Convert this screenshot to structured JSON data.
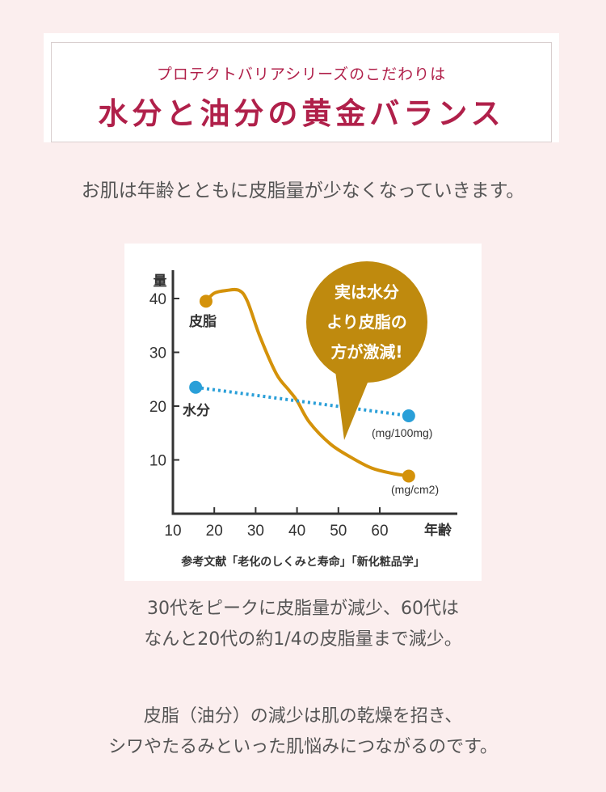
{
  "header": {
    "subtitle": "プロテクトバリアシリーズのこだわりは",
    "title": "水分と油分の黄金バランス"
  },
  "intro": "お肌は年齢とともに皮脂量が少なくなっていきます。",
  "chart_data": {
    "type": "line",
    "ylabel": "量",
    "xlabel": "年齢",
    "x_ticks": [
      "10",
      "20",
      "30",
      "40",
      "50",
      "60"
    ],
    "y_ticks": [
      "10",
      "20",
      "30",
      "40"
    ],
    "xlim": [
      10,
      68
    ],
    "ylim": [
      0,
      45
    ],
    "series": [
      {
        "name": "皮脂",
        "unit": "(mg/cm2)",
        "color": "#d4920a",
        "style": "solid",
        "x": [
          18,
          20,
          23,
          26,
          28,
          31,
          35,
          38,
          40,
          43,
          48,
          53,
          58,
          63,
          67
        ],
        "y": [
          39.5,
          41,
          41.5,
          41.5,
          39.5,
          33,
          26,
          23,
          21,
          17,
          13,
          10.5,
          8.5,
          7.5,
          7
        ]
      },
      {
        "name": "水分",
        "unit": "(mg/100mg)",
        "color": "#2a9fd8",
        "style": "dotted",
        "x": [
          15.5,
          67
        ],
        "y": [
          23.5,
          18.2
        ]
      }
    ],
    "callout": [
      "実は水分",
      "より皮脂の",
      "方が激減!"
    ],
    "callout_color": "#bf8a0e",
    "source": "参考文献「老化のしくみと寿命」「新化粧品学」"
  },
  "captions": {
    "block1": [
      "30代をピークに皮脂量が減少、60代は",
      "なんと20代の約1/4の皮脂量まで減少。"
    ],
    "block2": [
      "皮脂（油分）の減少は肌の乾燥を招き、",
      "シワやたるみといった肌悩みにつながるのです。"
    ]
  }
}
